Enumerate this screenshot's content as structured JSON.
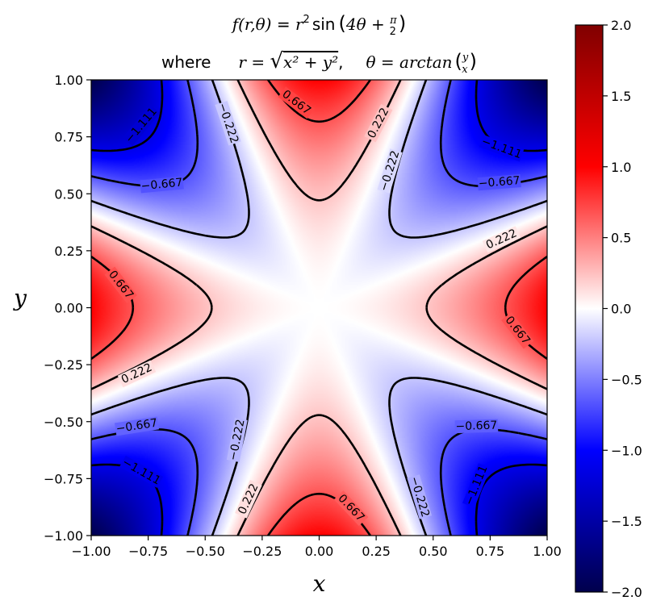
{
  "chart_data": {
    "type": "heatmap",
    "function": "r^2 * sin(4*theta + pi/2)",
    "title_line1": "f(r, θ) = r² sin (4θ + π/2)",
    "title_line1_lhs": "f(r,θ)",
    "title_line1_eq": " = ",
    "title_line1_r": "r",
    "title_line1_rexp": "2",
    "title_line1_sin": "sin",
    "title_line1_arg": "4θ + ",
    "title_line1_pi": "π",
    "title_line1_two": "2",
    "title_line2_where": "where",
    "title_line2_r": "r = ",
    "title_line2_sqrt": "x² + y²",
    "title_line2_comma": ",",
    "title_line2_theta": "θ = arctan",
    "title_line2_y": "y",
    "title_line2_x": "x",
    "xlabel": "x",
    "ylabel": "y",
    "xlim": [
      -1.0,
      1.0
    ],
    "ylim": [
      -1.0,
      1.0
    ],
    "xticks": [
      "−1.00",
      "−0.75",
      "−0.50",
      "−0.25",
      "0.00",
      "0.25",
      "0.50",
      "0.75",
      "1.00"
    ],
    "yticks": [
      "−1.00",
      "−0.75",
      "−0.50",
      "−0.25",
      "0.00",
      "0.25",
      "0.50",
      "0.75",
      "1.00"
    ],
    "tick_values": [
      -1.0,
      -0.75,
      -0.5,
      -0.25,
      0.0,
      0.25,
      0.5,
      0.75,
      1.0
    ],
    "colormap": "seismic",
    "vmin": -2.0,
    "vmax": 2.0,
    "colorbar_ticks": [
      "2.0",
      "1.5",
      "1.0",
      "0.5",
      "0.0",
      "−0.5",
      "−1.0",
      "−1.5",
      "−2.0"
    ],
    "colorbar_values": [
      2.0,
      1.5,
      1.0,
      0.5,
      0.0,
      -0.5,
      -1.0,
      -1.5,
      -2.0
    ],
    "contour_levels": [
      -1.111,
      -0.667,
      -0.222,
      0.222,
      0.667
    ],
    "contour_label_text": {
      "-1.111": "−1.111",
      "-0.667": "−0.667",
      "-0.222": "−0.222",
      "0.222": "0.222",
      "0.667": "0.667"
    },
    "contour_labels": [
      {
        "level": -1.111,
        "x": -0.78,
        "y": 0.8
      },
      {
        "level": -1.111,
        "x": 0.8,
        "y": 0.7
      },
      {
        "level": -1.111,
        "x": -0.78,
        "y": -0.72
      },
      {
        "level": -1.111,
        "x": 0.69,
        "y": -0.78
      },
      {
        "level": -0.667,
        "x": -0.69,
        "y": 0.54
      },
      {
        "level": -0.667,
        "x": 0.79,
        "y": 0.55
      },
      {
        "level": -0.667,
        "x": -0.8,
        "y": -0.52
      },
      {
        "level": -0.667,
        "x": 0.69,
        "y": -0.52
      },
      {
        "level": -0.222,
        "x": -0.4,
        "y": 0.81
      },
      {
        "level": -0.222,
        "x": 0.31,
        "y": 0.6
      },
      {
        "level": -0.222,
        "x": -0.36,
        "y": -0.58
      },
      {
        "level": -0.222,
        "x": 0.44,
        "y": -0.83
      },
      {
        "level": 0.222,
        "x": 0.26,
        "y": 0.81
      },
      {
        "level": 0.222,
        "x": 0.8,
        "y": 0.3
      },
      {
        "level": 0.222,
        "x": -0.8,
        "y": -0.29
      },
      {
        "level": 0.222,
        "x": -0.31,
        "y": -0.84
      },
      {
        "level": 0.222,
        "x": -0.31,
        "y": -0.84
      },
      {
        "level": 0.667,
        "x": -0.1,
        "y": 0.9
      },
      {
        "level": 0.667,
        "x": -0.87,
        "y": 0.1
      },
      {
        "level": 0.667,
        "x": 0.87,
        "y": -0.1
      },
      {
        "level": 0.667,
        "x": 0.14,
        "y": -0.88
      }
    ]
  }
}
